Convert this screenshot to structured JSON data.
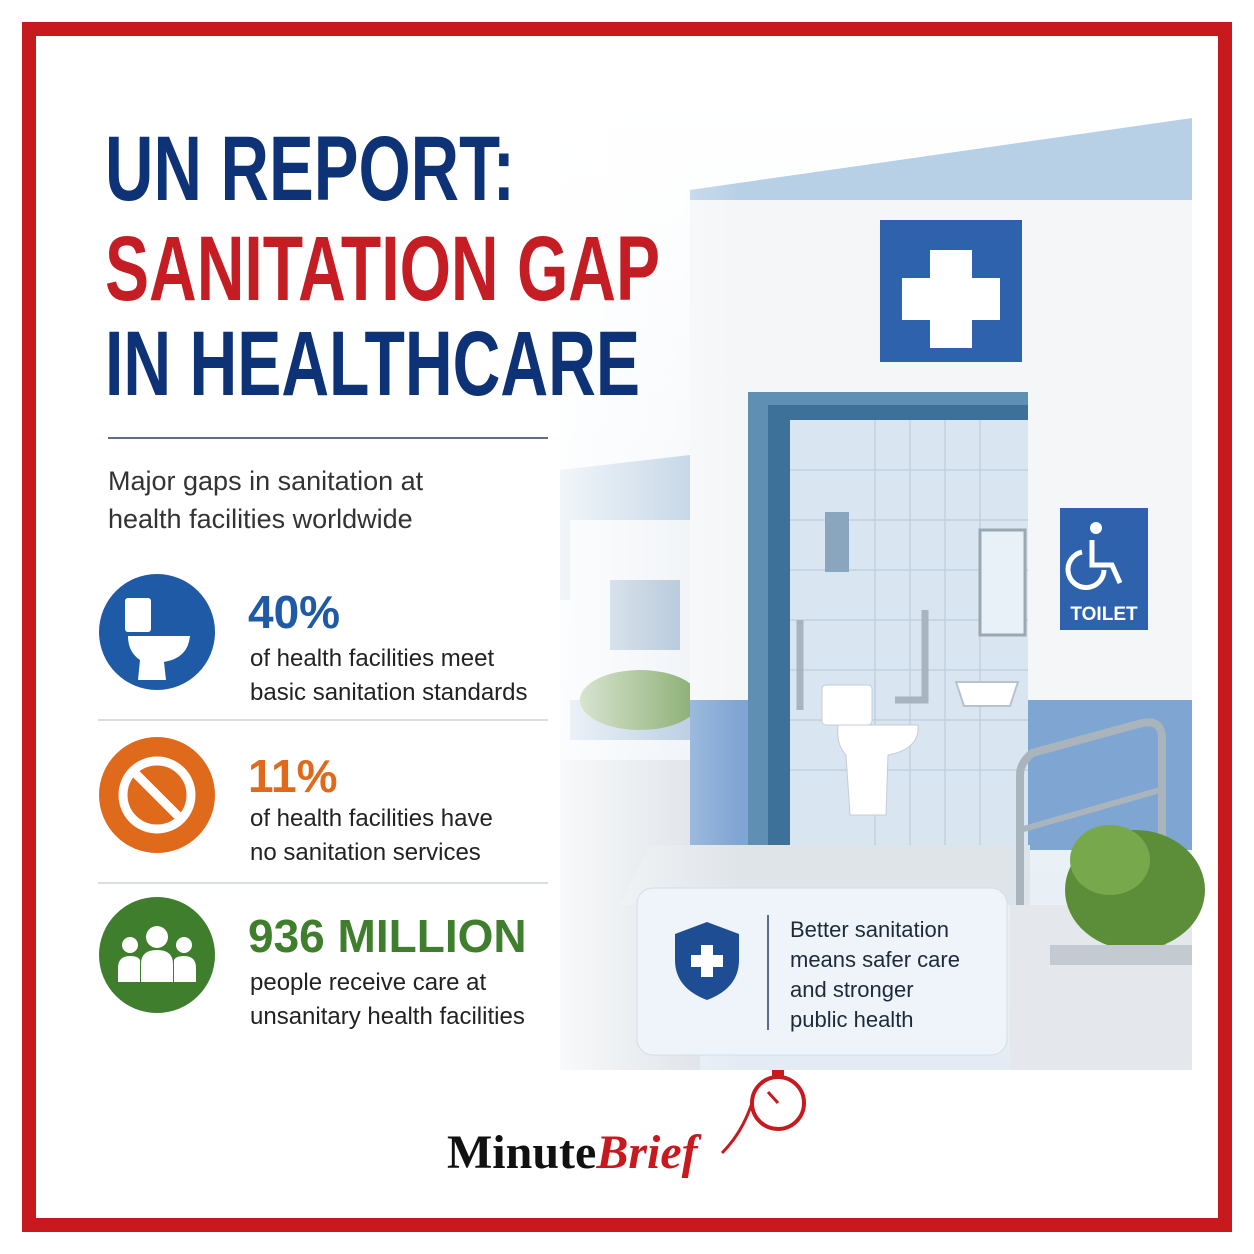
{
  "header": {
    "title": [
      "UN REPORT:",
      "SANITATION GAP",
      "IN HEALTHCARE"
    ]
  },
  "subtitle": [
    "Major gaps in sanitation at",
    "health facilities worldwide"
  ],
  "stats": [
    {
      "value": "40%",
      "description": [
        "of health facilities meet",
        "basic sanitation standards"
      ]
    },
    {
      "value": "11%",
      "description": [
        "of health facilities have",
        "no sanitation services"
      ]
    },
    {
      "value": "936 MILLION",
      "description": [
        "people receive care at",
        "unsanitary health facilities"
      ]
    }
  ],
  "callout": [
    "Better sanitation",
    "means safer care",
    "and stronger",
    "public health"
  ],
  "sign": "TOILET",
  "brand": {
    "first": "Minute",
    "second": "Brief"
  }
}
